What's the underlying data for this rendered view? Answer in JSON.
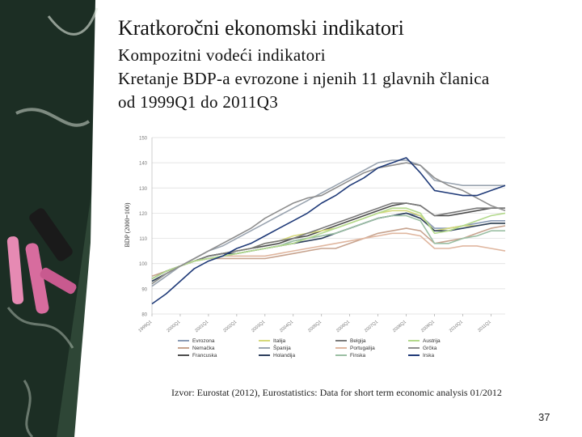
{
  "slide": {
    "title": "Kratkoročni ekonomski indikatori",
    "subtitle_1": "Kompozitni vodeći indikatori",
    "subtitle_2": "Kretanje BDP-a evrozone i njenih 11 glavnih članica",
    "subtitle_3": "od 1999Q1 do 2011Q3",
    "source": "Izvor: Eurostat (2012), Eurostatistics: Data for short term economic analysis 01/2012",
    "page_number": "37"
  },
  "chart_data": {
    "type": "line",
    "ylabel": "BDP (2000=100)",
    "xlabel": "",
    "ylim": [
      80,
      150
    ],
    "yticks": [
      80,
      90,
      100,
      110,
      120,
      130,
      140,
      150
    ],
    "grid": true,
    "x": [
      "1999Q1",
      "1999Q3",
      "2000Q1",
      "2000Q3",
      "2001Q1",
      "2001Q3",
      "2002Q1",
      "2002Q3",
      "2003Q1",
      "2003Q3",
      "2004Q1",
      "2004Q3",
      "2005Q1",
      "2005Q3",
      "2006Q1",
      "2006Q3",
      "2007Q1",
      "2007Q3",
      "2008Q1",
      "2008Q3",
      "2009Q1",
      "2009Q3",
      "2010Q1",
      "2010Q3",
      "2011Q1",
      "2011Q3"
    ],
    "xtick_labels": [
      "1999Q1",
      "2000Q1",
      "2001Q1",
      "2002Q1",
      "2003Q1",
      "2004Q1",
      "2005Q1",
      "2006Q1",
      "2007Q1",
      "2008Q1",
      "2009Q1",
      "2010Q1",
      "2011Q1"
    ],
    "legend_placement": "bottom",
    "series": [
      {
        "name": "Evrozona",
        "color": "#8a9bb5",
        "values": [
          94,
          97,
          99,
          101,
          102,
          103,
          104,
          105,
          106,
          107,
          109,
          110,
          111,
          112,
          114,
          116,
          118,
          119,
          120,
          119,
          114,
          114,
          115,
          116,
          117,
          117
        ]
      },
      {
        "name": "Nemačka",
        "color": "#c7a38e",
        "values": [
          95,
          97,
          99,
          101,
          102,
          102,
          102,
          102,
          102,
          103,
          104,
          105,
          106,
          106,
          108,
          110,
          112,
          113,
          114,
          113,
          108,
          109,
          110,
          112,
          114,
          115
        ]
      },
      {
        "name": "Francuska",
        "color": "#4d4d4d",
        "values": [
          94,
          97,
          99,
          101,
          103,
          104,
          105,
          106,
          107,
          108,
          110,
          111,
          113,
          115,
          117,
          119,
          121,
          123,
          124,
          123,
          119,
          119,
          120,
          121,
          122,
          122
        ]
      },
      {
        "name": "Italija",
        "color": "#d6d97a",
        "values": [
          93,
          96,
          99,
          101,
          103,
          104,
          105,
          106,
          108,
          109,
          111,
          112,
          113,
          114,
          116,
          118,
          120,
          121,
          121,
          119,
          113,
          114,
          115,
          115,
          116,
          116
        ]
      },
      {
        "name": "Španija",
        "color": "#9aa4b0",
        "values": [
          91,
          95,
          99,
          102,
          105,
          107,
          110,
          113,
          116,
          119,
          122,
          125,
          128,
          131,
          134,
          137,
          140,
          141,
          141,
          139,
          133,
          132,
          131,
          131,
          131,
          131
        ]
      },
      {
        "name": "Holandija",
        "color": "#2c3e5c",
        "values": [
          93,
          96,
          99,
          101,
          103,
          104,
          104,
          105,
          106,
          107,
          108,
          109,
          110,
          112,
          114,
          116,
          118,
          119,
          120,
          118,
          113,
          113,
          114,
          115,
          116,
          116
        ]
      },
      {
        "name": "Belgija",
        "color": "#7a7a7a",
        "values": [
          94,
          97,
          99,
          101,
          103,
          104,
          105,
          106,
          108,
          109,
          110,
          112,
          114,
          116,
          118,
          120,
          122,
          124,
          124,
          123,
          119,
          120,
          121,
          122,
          122,
          122
        ]
      },
      {
        "name": "Portugalija",
        "color": "#e0b7a0",
        "values": [
          92,
          96,
          99,
          101,
          102,
          103,
          103,
          103,
          103,
          104,
          105,
          106,
          107,
          108,
          109,
          110,
          111,
          112,
          112,
          111,
          106,
          106,
          107,
          107,
          106,
          105
        ]
      },
      {
        "name": "Finska",
        "color": "#9bbfa3",
        "values": [
          92,
          96,
          99,
          101,
          102,
          103,
          104,
          105,
          106,
          107,
          109,
          110,
          111,
          112,
          114,
          116,
          118,
          119,
          119,
          117,
          108,
          108,
          110,
          111,
          113,
          113
        ]
      },
      {
        "name": "Austrija",
        "color": "#b3d98c",
        "values": [
          94,
          97,
          99,
          101,
          102,
          103,
          104,
          105,
          106,
          107,
          108,
          110,
          112,
          114,
          116,
          118,
          120,
          122,
          122,
          120,
          112,
          113,
          115,
          117,
          119,
          120
        ]
      },
      {
        "name": "Grčka",
        "color": "#8e8e8e",
        "values": [
          92,
          96,
          99,
          102,
          105,
          108,
          111,
          114,
          118,
          121,
          124,
          126,
          127,
          130,
          133,
          136,
          138,
          139,
          140,
          139,
          134,
          131,
          129,
          126,
          123,
          121
        ]
      },
      {
        "name": "Irska",
        "color": "#1f3a78",
        "values": [
          84,
          88,
          93,
          98,
          101,
          103,
          106,
          108,
          111,
          114,
          117,
          120,
          124,
          127,
          131,
          134,
          138,
          140,
          142,
          136,
          129,
          128,
          127,
          127,
          129,
          131
        ]
      }
    ]
  }
}
